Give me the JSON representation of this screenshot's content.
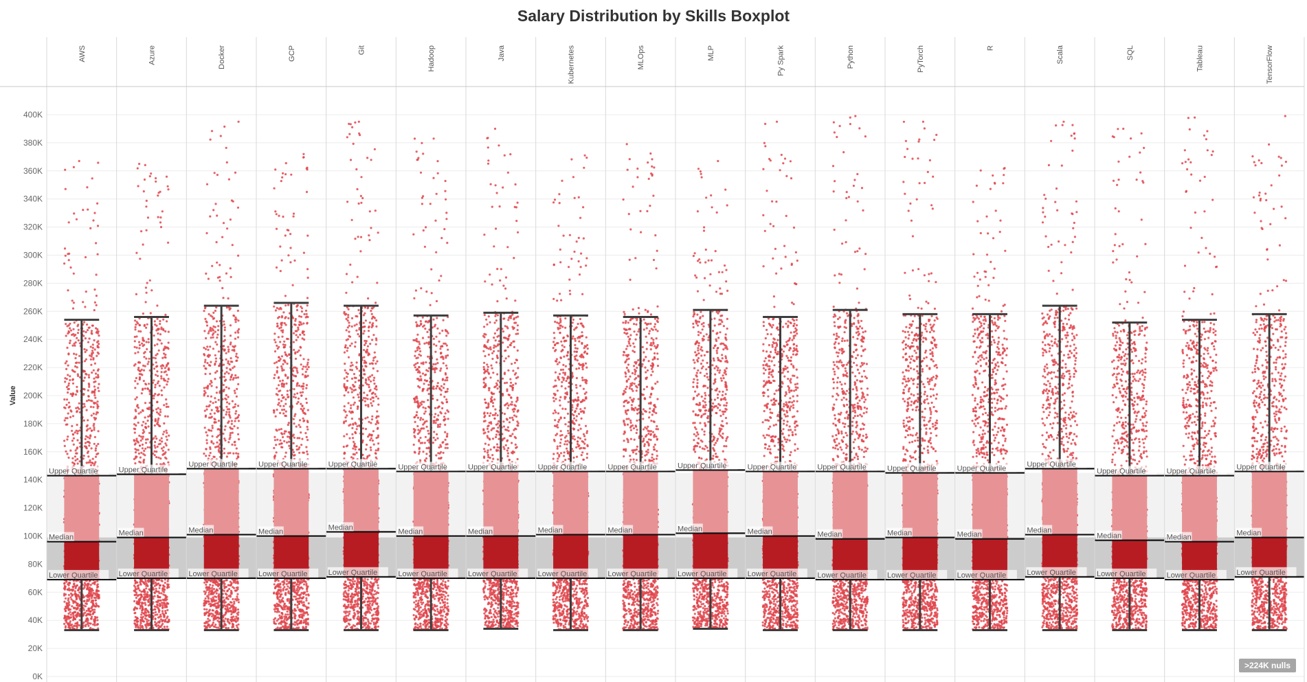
{
  "title": "Salary Distribution by Skills Boxplot",
  "null_indicator": ">224K nulls",
  "colors": {
    "upper_box": "#e79396",
    "lower_box": "#b81c23",
    "dots": "#e0474e",
    "whisker": "#3d3d3d",
    "band_upper": "#f2f2f2",
    "band_lower": "#cccccc"
  },
  "chart_data": {
    "type": "boxplot",
    "title": "Salary Distribution by Skills Boxplot",
    "ylabel": "Value",
    "xlabel": "",
    "ylim": [
      0,
      420000
    ],
    "y_ticks": [
      0,
      20000,
      40000,
      60000,
      80000,
      100000,
      120000,
      140000,
      160000,
      180000,
      200000,
      220000,
      240000,
      260000,
      280000,
      300000,
      320000,
      340000,
      360000,
      380000,
      400000
    ],
    "y_tick_labels": [
      "0K",
      "20K",
      "40K",
      "60K",
      "80K",
      "100K",
      "120K",
      "140K",
      "160K",
      "180K",
      "200K",
      "220K",
      "240K",
      "260K",
      "280K",
      "300K",
      "320K",
      "340K",
      "360K",
      "380K",
      "400K"
    ],
    "band_labels": {
      "upper": "Upper Quartile",
      "median": "Median",
      "lower": "Lower Quartile"
    },
    "reference_band": {
      "lower_quartile": 70000,
      "median": 99000,
      "upper_quartile": 145000
    },
    "grid": true,
    "categories": [
      "AWS",
      "Azure",
      "Docker",
      "GCP",
      "Git",
      "Hadoop",
      "Java",
      "Kubernetes",
      "MLOps",
      "MLP",
      "Py Spark",
      "Python",
      "PyTorch",
      "R",
      "Scala",
      "SQL",
      "Tableau",
      "TensorFlow"
    ],
    "boxes": [
      {
        "category": "AWS",
        "whisker_low": 33000,
        "q1": 69000,
        "median": 96000,
        "q3": 143000,
        "whisker_high": 254000,
        "max": 367000
      },
      {
        "category": "Azure",
        "whisker_low": 33000,
        "q1": 70000,
        "median": 99000,
        "q3": 144000,
        "whisker_high": 256000,
        "max": 365000
      },
      {
        "category": "Docker",
        "whisker_low": 33000,
        "q1": 70000,
        "median": 101000,
        "q3": 148000,
        "whisker_high": 264000,
        "max": 395000
      },
      {
        "category": "GCP",
        "whisker_low": 33000,
        "q1": 70000,
        "median": 100000,
        "q3": 148000,
        "whisker_high": 266000,
        "max": 372000
      },
      {
        "category": "Git",
        "whisker_low": 33000,
        "q1": 71000,
        "median": 103000,
        "q3": 148000,
        "whisker_high": 264000,
        "max": 395000
      },
      {
        "category": "Hadoop",
        "whisker_low": 33000,
        "q1": 70000,
        "median": 100000,
        "q3": 146000,
        "whisker_high": 257000,
        "max": 383000
      },
      {
        "category": "Java",
        "whisker_low": 34000,
        "q1": 70000,
        "median": 100000,
        "q3": 146000,
        "whisker_high": 259000,
        "max": 390000
      },
      {
        "category": "Kubernetes",
        "whisker_low": 33000,
        "q1": 70000,
        "median": 101000,
        "q3": 146000,
        "whisker_high": 257000,
        "max": 371000
      },
      {
        "category": "MLOps",
        "whisker_low": 33000,
        "q1": 70000,
        "median": 101000,
        "q3": 146000,
        "whisker_high": 256000,
        "max": 379000
      },
      {
        "category": "MLP",
        "whisker_low": 34000,
        "q1": 70000,
        "median": 102000,
        "q3": 147000,
        "whisker_high": 261000,
        "max": 367000
      },
      {
        "category": "Py Spark",
        "whisker_low": 33000,
        "q1": 70000,
        "median": 100000,
        "q3": 146000,
        "whisker_high": 256000,
        "max": 395000
      },
      {
        "category": "Python",
        "whisker_low": 33000,
        "q1": 69000,
        "median": 98000,
        "q3": 146000,
        "whisker_high": 261000,
        "max": 399000
      },
      {
        "category": "PyTorch",
        "whisker_low": 33000,
        "q1": 69000,
        "median": 99000,
        "q3": 145000,
        "whisker_high": 258000,
        "max": 395000
      },
      {
        "category": "R",
        "whisker_low": 33000,
        "q1": 69000,
        "median": 98000,
        "q3": 145000,
        "whisker_high": 258000,
        "max": 362000
      },
      {
        "category": "Scala",
        "whisker_low": 33000,
        "q1": 71000,
        "median": 101000,
        "q3": 148000,
        "whisker_high": 264000,
        "max": 395000
      },
      {
        "category": "SQL",
        "whisker_low": 33000,
        "q1": 70000,
        "median": 97000,
        "q3": 143000,
        "whisker_high": 252000,
        "max": 390000
      },
      {
        "category": "Tableau",
        "whisker_low": 33000,
        "q1": 69000,
        "median": 96000,
        "q3": 143000,
        "whisker_high": 254000,
        "max": 398000
      },
      {
        "category": "TensorFlow",
        "whisker_low": 33000,
        "q1": 71000,
        "median": 99000,
        "q3": 146000,
        "whisker_high": 258000,
        "max": 399000
      }
    ]
  }
}
